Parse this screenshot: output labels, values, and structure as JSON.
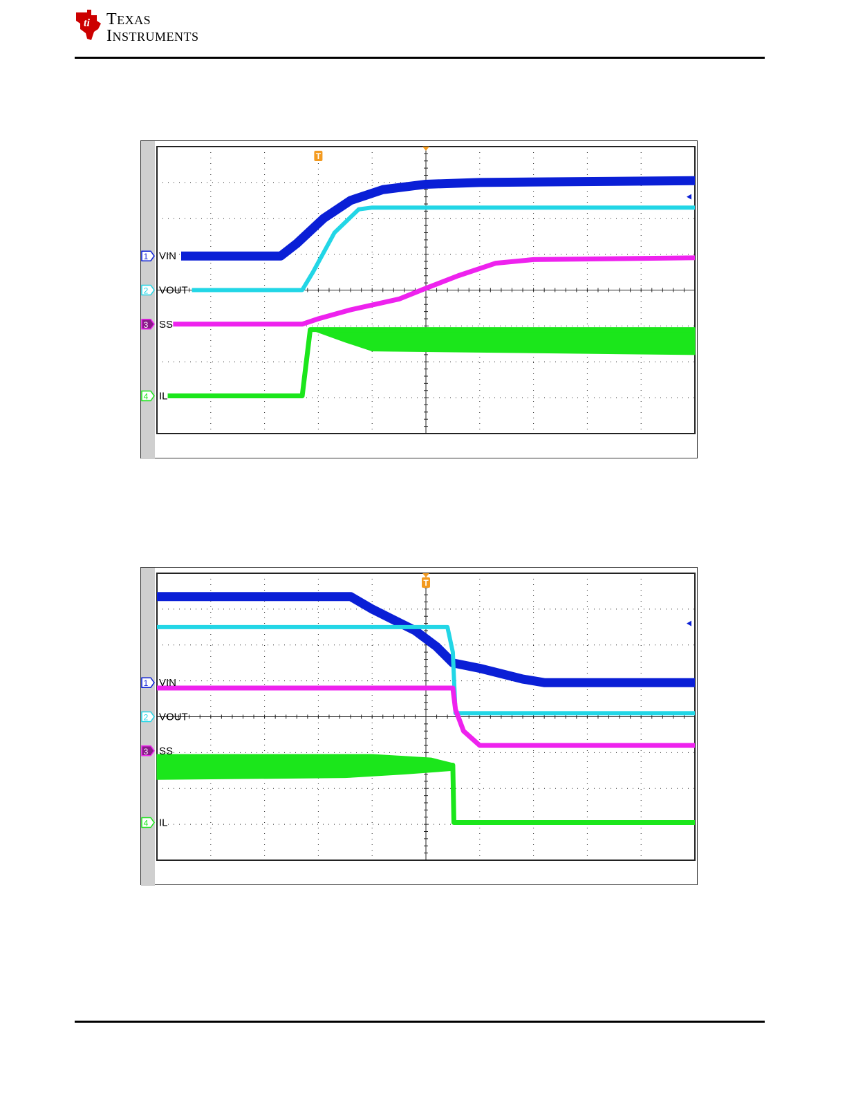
{
  "header": {
    "brand_line1": "Texas",
    "brand_line2": "Instruments",
    "brand_color": "#cc0000"
  },
  "colors": {
    "ch1": "#0a1fd6",
    "ch2": "#22d6e6",
    "ch3": "#ee22ee",
    "ch4": "#1be61b",
    "trigger": "#f39a1f",
    "grid": "#222222"
  },
  "chart_data": [
    {
      "type": "line",
      "title": "",
      "grid": true,
      "x": [
        0,
        1,
        2,
        3,
        4,
        5,
        6,
        7,
        8,
        9,
        10
      ],
      "xlim": [
        0,
        10
      ],
      "ylim": [
        0,
        8
      ],
      "trigger_x": 3.0,
      "trigger_label": "T",
      "series": [
        {
          "name": "VIN",
          "channel": "1",
          "points": [
            [
              0.45,
              4.95
            ],
            [
              2.3,
              4.95
            ],
            [
              2.6,
              5.3
            ],
            [
              3.1,
              6.0
            ],
            [
              3.6,
              6.5
            ],
            [
              4.2,
              6.8
            ],
            [
              5.0,
              6.95
            ],
            [
              6.0,
              7.0
            ],
            [
              10.0,
              7.05
            ]
          ],
          "thick": 13
        },
        {
          "name": "VOUT",
          "channel": "2",
          "points": [
            [
              0.65,
              4.0
            ],
            [
              2.7,
              4.0
            ],
            [
              2.9,
              4.5
            ],
            [
              3.3,
              5.6
            ],
            [
              3.75,
              6.25
            ],
            [
              4.0,
              6.3
            ],
            [
              10.0,
              6.3
            ]
          ],
          "thick": 6
        },
        {
          "name": "SS",
          "channel": "3",
          "points": [
            [
              0.3,
              3.05
            ],
            [
              2.7,
              3.05
            ],
            [
              3.0,
              3.2
            ],
            [
              3.6,
              3.45
            ],
            [
              4.5,
              3.75
            ],
            [
              5.0,
              4.05
            ],
            [
              5.6,
              4.4
            ],
            [
              6.3,
              4.75
            ],
            [
              7.0,
              4.85
            ],
            [
              10.0,
              4.9
            ]
          ],
          "thick": 7
        },
        {
          "name": "IL",
          "channel": "4",
          "points": [
            [
              0.2,
              1.05
            ],
            [
              2.7,
              1.05
            ],
            [
              2.85,
              2.9
            ],
            [
              10.0,
              2.9
            ]
          ],
          "thick": 7,
          "envelope": {
            "x_start": 2.85,
            "upper": [
              [
                2.85,
                2.9
              ],
              [
                3.6,
                2.95
              ],
              [
                10.0,
                2.95
              ]
            ],
            "lower": [
              [
                2.85,
                2.9
              ],
              [
                3.5,
                2.55
              ],
              [
                4.0,
                2.3
              ],
              [
                10.0,
                2.2
              ]
            ]
          }
        }
      ],
      "channel_markers": [
        {
          "channel": "1",
          "label": "VIN",
          "level": 4.95
        },
        {
          "channel": "2",
          "label": "VOUT",
          "level": 4.0
        },
        {
          "channel": "3",
          "label": "SS",
          "level": 3.05
        },
        {
          "channel": "4",
          "label": "IL",
          "level": 1.05
        }
      ]
    },
    {
      "type": "line",
      "title": "",
      "grid": true,
      "x": [
        0,
        1,
        2,
        3,
        4,
        5,
        6,
        7,
        8,
        9,
        10
      ],
      "xlim": [
        0,
        10
      ],
      "ylim": [
        0,
        8
      ],
      "trigger_x": 5.0,
      "trigger_label": "T",
      "series": [
        {
          "name": "VIN",
          "channel": "1",
          "points": [
            [
              0.0,
              7.35
            ],
            [
              3.6,
              7.35
            ],
            [
              4.0,
              7.0
            ],
            [
              4.8,
              6.4
            ],
            [
              5.2,
              5.95
            ],
            [
              5.5,
              5.5
            ],
            [
              6.0,
              5.35
            ],
            [
              6.8,
              5.05
            ],
            [
              7.2,
              4.95
            ],
            [
              10.0,
              4.95
            ]
          ],
          "thick": 13
        },
        {
          "name": "VOUT",
          "channel": "2",
          "points": [
            [
              0.0,
              6.5
            ],
            [
              5.4,
              6.5
            ],
            [
              5.5,
              5.8
            ],
            [
              5.55,
              4.1
            ],
            [
              10.0,
              4.1
            ]
          ],
          "thick": 6
        },
        {
          "name": "SS",
          "channel": "3",
          "points": [
            [
              0.0,
              4.8
            ],
            [
              5.5,
              4.8
            ],
            [
              5.55,
              4.2
            ],
            [
              5.7,
              3.6
            ],
            [
              6.0,
              3.2
            ],
            [
              10.0,
              3.2
            ]
          ],
          "thick": 7
        },
        {
          "name": "IL",
          "channel": "4",
          "points": [
            [
              0.0,
              2.65
            ],
            [
              5.5,
              2.65
            ],
            [
              5.52,
              1.05
            ],
            [
              10.0,
              1.05
            ]
          ],
          "thick": 7,
          "envelope": {
            "x_start": 0.0,
            "upper": [
              [
                0.0,
                2.95
              ],
              [
                4.0,
                2.95
              ],
              [
                5.1,
                2.85
              ],
              [
                5.5,
                2.7
              ]
            ],
            "lower": [
              [
                0.0,
                2.25
              ],
              [
                3.5,
                2.3
              ],
              [
                4.6,
                2.4
              ],
              [
                5.5,
                2.5
              ]
            ]
          }
        }
      ],
      "channel_markers": [
        {
          "channel": "1",
          "label": "VIN",
          "level": 4.95
        },
        {
          "channel": "2",
          "label": "VOUT",
          "level": 4.0
        },
        {
          "channel": "3",
          "label": "SS",
          "level": 3.05
        },
        {
          "channel": "4",
          "label": "IL",
          "level": 1.05
        }
      ]
    }
  ]
}
